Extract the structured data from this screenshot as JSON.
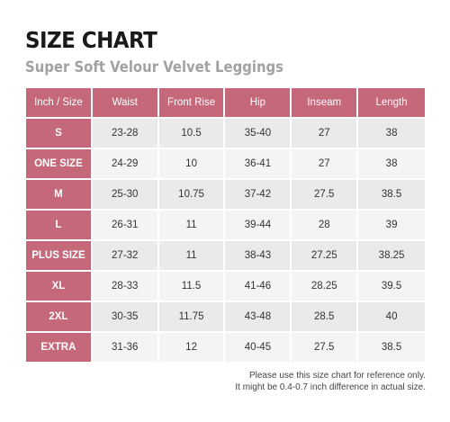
{
  "title": "SIZE CHART",
  "subtitle": "Super Soft Velour Velvet Leggings",
  "colors": {
    "header_bg": "#c4687a",
    "row_dark": "#eaeaea",
    "row_light": "#f4f4f4",
    "title": "#1a1a1a",
    "subtitle": "#a2a2a2"
  },
  "table": {
    "headers": [
      "Inch / Size",
      "Waist",
      "Front Rise",
      "Hip",
      "Inseam",
      "Length"
    ],
    "rows": [
      {
        "size": "S",
        "waist": "23-28",
        "front_rise": "10.5",
        "hip": "35-40",
        "inseam": "27",
        "length": "38"
      },
      {
        "size": "ONE SIZE",
        "waist": "24-29",
        "front_rise": "10",
        "hip": "36-41",
        "inseam": "27",
        "length": "38"
      },
      {
        "size": "M",
        "waist": "25-30",
        "front_rise": "10.75",
        "hip": "37-42",
        "inseam": "27.5",
        "length": "38.5"
      },
      {
        "size": "L",
        "waist": "26-31",
        "front_rise": "11",
        "hip": "39-44",
        "inseam": "28",
        "length": "39"
      },
      {
        "size": "PLUS SIZE",
        "waist": "27-32",
        "front_rise": "11",
        "hip": "38-43",
        "inseam": "27.25",
        "length": "38.25"
      },
      {
        "size": "XL",
        "waist": "28-33",
        "front_rise": "11.5",
        "hip": "41-46",
        "inseam": "28.25",
        "length": "39.5"
      },
      {
        "size": "2XL",
        "waist": "30-35",
        "front_rise": "11.75",
        "hip": "43-48",
        "inseam": "28.5",
        "length": "40"
      },
      {
        "size": "EXTRA",
        "waist": "31-36",
        "front_rise": "12",
        "hip": "40-45",
        "inseam": "27.5",
        "length": "38.5"
      }
    ]
  },
  "footnote": {
    "line1": "Please use this size chart for reference only.",
    "line2": "It might be 0.4-0.7 inch difference in actual size."
  }
}
